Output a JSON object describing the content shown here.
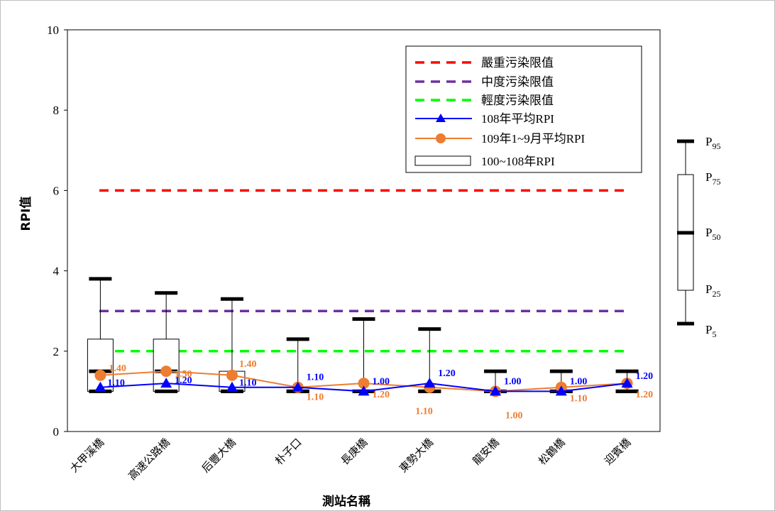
{
  "chart_data": {
    "type": "box",
    "ylabel": "RPI值",
    "xlabel": "測站名稱",
    "ylim": [
      0,
      10
    ],
    "yticks": [
      "0",
      "2",
      "4",
      "6",
      "8",
      "10"
    ],
    "categories": [
      "大甲溪橋",
      "高速公路橋",
      "后豐大橋",
      "朴子口",
      "長庚橋",
      "東勢大橋",
      "龍安橋",
      "松鶴橋",
      "迎賓橋"
    ],
    "box_series": {
      "name": "100~108年RPI",
      "boxes": [
        {
          "p5": 1.0,
          "p25": 1.0,
          "p50": 1.5,
          "p75": 2.3,
          "p95": 3.8
        },
        {
          "p5": 1.0,
          "p25": 1.0,
          "p50": 1.5,
          "p75": 2.3,
          "p95": 3.45
        },
        {
          "p5": 1.0,
          "p25": 1.0,
          "p50": 1.0,
          "p75": 1.5,
          "p95": 3.3
        },
        {
          "p5": 1.0,
          "p25": 1.0,
          "p50": 1.0,
          "p75": 1.0,
          "p95": 2.3
        },
        {
          "p5": 1.0,
          "p25": 1.0,
          "p50": 1.0,
          "p75": 1.0,
          "p95": 2.8
        },
        {
          "p5": 1.0,
          "p25": 1.0,
          "p50": 1.0,
          "p75": 1.0,
          "p95": 2.55
        },
        {
          "p5": 1.0,
          "p25": 1.0,
          "p50": 1.0,
          "p75": 1.0,
          "p95": 1.5
        },
        {
          "p5": 1.0,
          "p25": 1.0,
          "p50": 1.0,
          "p75": 1.0,
          "p95": 1.5
        },
        {
          "p5": 1.0,
          "p25": 1.0,
          "p50": 1.0,
          "p75": 1.0,
          "p95": 1.5
        }
      ]
    },
    "series": [
      {
        "name": "108年平均RPI",
        "color": "#0000ff",
        "marker": "triangle",
        "values": [
          1.1,
          1.2,
          1.1,
          1.1,
          1.0,
          1.2,
          1.0,
          1.0,
          1.2
        ],
        "labels": [
          "1.10",
          "1.20",
          "1.10",
          "1.10",
          "1.00",
          "1.20",
          "1.00",
          "1.00",
          "1.20"
        ]
      },
      {
        "name": "109年1~9月平均RPI",
        "color": "#ed7d31",
        "marker": "circle",
        "values": [
          1.4,
          1.5,
          1.4,
          1.1,
          1.2,
          1.1,
          1.0,
          1.1,
          1.2
        ],
        "labels": [
          "1.40",
          "1.50",
          "1.40",
          "1.10",
          "1.20",
          "1.10",
          "1.00",
          "1.10",
          "1.20"
        ]
      }
    ],
    "reference_lines": [
      {
        "name": "嚴重污染限值",
        "value": 6,
        "color": "#ff0000"
      },
      {
        "name": "中度污染限值",
        "value": 3,
        "color": "#7030a0"
      },
      {
        "name": "輕度污染限值",
        "value": 2,
        "color": "#00ff00"
      }
    ],
    "legend_position": "top-right",
    "box_key": {
      "labels": [
        "P",
        "P",
        "P",
        "P",
        "P"
      ],
      "subs": [
        "95",
        "75",
        "50",
        "25",
        "5"
      ]
    }
  }
}
